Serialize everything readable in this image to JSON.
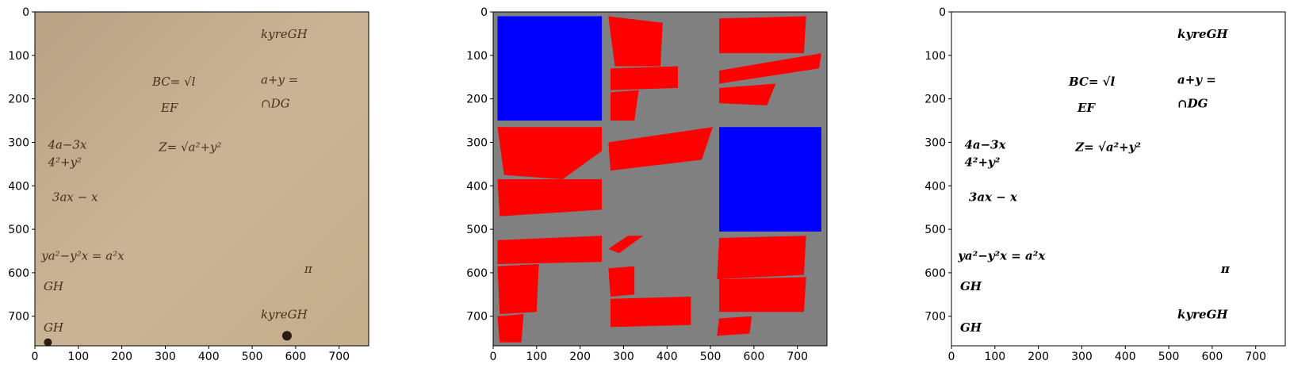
{
  "figure": {
    "panels": [
      {
        "id": "manuscript-original",
        "kind": "photo"
      },
      {
        "id": "segmentation-mask",
        "kind": "mask"
      },
      {
        "id": "binarized-output",
        "kind": "binary"
      }
    ],
    "axis": {
      "x_ticks": [
        0,
        100,
        200,
        300,
        400,
        500,
        600,
        700
      ],
      "y_ticks": [
        0,
        100,
        200,
        300,
        400,
        500,
        600,
        700
      ],
      "xlim": [
        0,
        768
      ],
      "ylim": [
        768,
        0
      ]
    },
    "colors": {
      "parchment": "#c9b596",
      "ink": "#4a2c1a",
      "mask_background": "#808080",
      "mask_red": "#ff0000",
      "mask_blue": "#0000ff",
      "binary_bg": "#ffffff",
      "binary_ink": "#000000"
    },
    "manuscript_text": [
      {
        "text": "BC= √l",
        "x": 270,
        "y": 170
      },
      {
        "text": "EF",
        "x": 290,
        "y": 230
      },
      {
        "text": "a+y =",
        "x": 520,
        "y": 165
      },
      {
        "text": "∩DG",
        "x": 520,
        "y": 220
      },
      {
        "text": "4a−3x",
        "x": 30,
        "y": 315
      },
      {
        "text": "4²+y²",
        "x": 30,
        "y": 355
      },
      {
        "text": "Z= √a²+y²",
        "x": 285,
        "y": 320
      },
      {
        "text": "3ax − x",
        "x": 40,
        "y": 435
      },
      {
        "text": "ya²−y²x = a²x",
        "x": 15,
        "y": 570
      },
      {
        "text": "GH",
        "x": 20,
        "y": 640
      },
      {
        "text": "GH",
        "x": 20,
        "y": 735
      },
      {
        "text": "kyreGH",
        "x": 520,
        "y": 60
      },
      {
        "text": "kyreGH",
        "x": 520,
        "y": 705
      },
      {
        "text": "π",
        "x": 620,
        "y": 600
      }
    ],
    "mask_regions": [
      {
        "color": "blue",
        "points": [
          [
            10,
            10
          ],
          [
            250,
            10
          ],
          [
            250,
            250
          ],
          [
            10,
            250
          ]
        ]
      },
      {
        "color": "blue",
        "points": [
          [
            520,
            265
          ],
          [
            755,
            265
          ],
          [
            755,
            505
          ],
          [
            520,
            505
          ]
        ]
      },
      {
        "color": "red",
        "points": [
          [
            265,
            10
          ],
          [
            390,
            25
          ],
          [
            385,
            125
          ],
          [
            280,
            125
          ]
        ]
      },
      {
        "color": "red",
        "points": [
          [
            270,
            130
          ],
          [
            425,
            125
          ],
          [
            425,
            175
          ],
          [
            270,
            180
          ]
        ]
      },
      {
        "color": "red",
        "points": [
          [
            270,
            185
          ],
          [
            335,
            180
          ],
          [
            325,
            250
          ],
          [
            270,
            250
          ]
        ]
      },
      {
        "color": "red",
        "points": [
          [
            520,
            15
          ],
          [
            720,
            10
          ],
          [
            715,
            95
          ],
          [
            520,
            95
          ]
        ]
      },
      {
        "color": "red",
        "points": [
          [
            520,
            135
          ],
          [
            755,
            95
          ],
          [
            750,
            130
          ],
          [
            520,
            165
          ]
        ]
      },
      {
        "color": "red",
        "points": [
          [
            520,
            175
          ],
          [
            650,
            165
          ],
          [
            630,
            215
          ],
          [
            520,
            210
          ]
        ]
      },
      {
        "color": "red",
        "points": [
          [
            10,
            265
          ],
          [
            250,
            265
          ],
          [
            250,
            320
          ],
          [
            160,
            385
          ],
          [
            25,
            375
          ]
        ]
      },
      {
        "color": "red",
        "points": [
          [
            265,
            300
          ],
          [
            505,
            265
          ],
          [
            480,
            340
          ],
          [
            270,
            365
          ]
        ]
      },
      {
        "color": "red",
        "points": [
          [
            10,
            385
          ],
          [
            250,
            385
          ],
          [
            250,
            455
          ],
          [
            15,
            470
          ]
        ]
      },
      {
        "color": "red",
        "points": [
          [
            10,
            525
          ],
          [
            250,
            515
          ],
          [
            250,
            575
          ],
          [
            10,
            580
          ]
        ]
      },
      {
        "color": "red",
        "points": [
          [
            10,
            585
          ],
          [
            105,
            580
          ],
          [
            100,
            690
          ],
          [
            15,
            695
          ]
        ]
      },
      {
        "color": "red",
        "points": [
          [
            10,
            700
          ],
          [
            70,
            695
          ],
          [
            65,
            760
          ],
          [
            15,
            760
          ]
        ]
      },
      {
        "color": "red",
        "points": [
          [
            310,
            515
          ],
          [
            345,
            515
          ],
          [
            290,
            555
          ],
          [
            265,
            545
          ]
        ]
      },
      {
        "color": "red",
        "points": [
          [
            265,
            590
          ],
          [
            325,
            585
          ],
          [
            325,
            650
          ],
          [
            270,
            655
          ]
        ]
      },
      {
        "color": "red",
        "points": [
          [
            270,
            660
          ],
          [
            455,
            655
          ],
          [
            455,
            720
          ],
          [
            270,
            725
          ]
        ]
      },
      {
        "color": "red",
        "points": [
          [
            520,
            520
          ],
          [
            720,
            515
          ],
          [
            715,
            605
          ],
          [
            515,
            615
          ]
        ]
      },
      {
        "color": "red",
        "points": [
          [
            520,
            615
          ],
          [
            720,
            610
          ],
          [
            715,
            690
          ],
          [
            520,
            690
          ]
        ]
      },
      {
        "color": "red",
        "points": [
          [
            520,
            705
          ],
          [
            595,
            700
          ],
          [
            590,
            740
          ],
          [
            515,
            745
          ]
        ]
      }
    ]
  }
}
